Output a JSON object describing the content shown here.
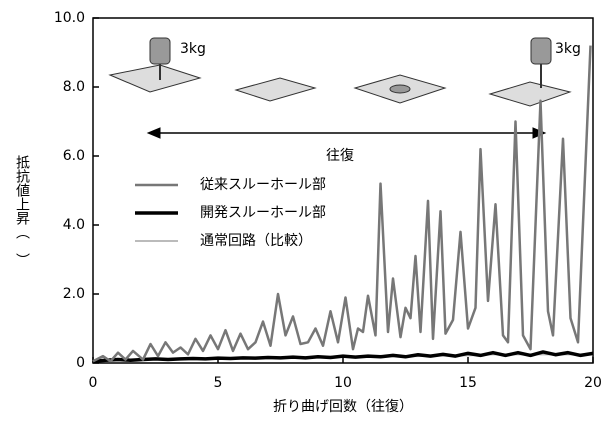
{
  "chart_data": {
    "type": "line",
    "y_label": "抵抗値上昇（　）",
    "x_label": "折り曲げ回数（往復）",
    "annotations": [
      "3kg",
      "3kg",
      "往復"
    ],
    "xlim": [
      0,
      20
    ],
    "xticks": [
      0,
      5,
      10,
      15,
      20
    ],
    "ylim": [
      0,
      10
    ],
    "yticks": [
      0,
      {
        "value": 2,
        "label": "2.0"
      },
      {
        "value": 4,
        "label": "4.0"
      },
      {
        "value": 6,
        "label": "6.0"
      },
      {
        "value": 8,
        "label": "8.0"
      },
      {
        "value": 10,
        "label": "10.0"
      }
    ],
    "legend": "upper left",
    "series": [
      {
        "name": "従来スルーホール部",
        "color": "#777777",
        "width": 2.5,
        "x": [
          0,
          0.4,
          0.7,
          1.0,
          1.3,
          1.6,
          2.0,
          2.3,
          2.6,
          2.9,
          3.2,
          3.5,
          3.8,
          4.1,
          4.4,
          4.7,
          5.0,
          5.3,
          5.6,
          5.9,
          6.2,
          6.5,
          6.8,
          7.1,
          7.4,
          7.7,
          8.0,
          8.3,
          8.6,
          8.9,
          9.2,
          9.5,
          9.8,
          10.1,
          10.4,
          10.6,
          10.8,
          11.0,
          11.3,
          11.5,
          11.8,
          12.0,
          12.3,
          12.5,
          12.7,
          12.9,
          13.1,
          13.4,
          13.6,
          13.9,
          14.1,
          14.4,
          14.7,
          15.0,
          15.3,
          15.5,
          15.8,
          16.1,
          16.4,
          16.6,
          16.9,
          17.2,
          17.5,
          17.9,
          18.2,
          18.4,
          18.8,
          19.1,
          19.4,
          19.9
        ],
        "values": [
          0.05,
          0.2,
          0.05,
          0.3,
          0.1,
          0.35,
          0.1,
          0.55,
          0.2,
          0.6,
          0.3,
          0.45,
          0.25,
          0.7,
          0.35,
          0.8,
          0.4,
          0.95,
          0.35,
          0.85,
          0.4,
          0.6,
          1.2,
          0.5,
          2.0,
          0.8,
          1.35,
          0.55,
          0.6,
          1.0,
          0.5,
          1.5,
          0.6,
          1.9,
          0.4,
          1.0,
          0.9,
          1.95,
          0.8,
          5.2,
          0.9,
          2.45,
          0.75,
          1.6,
          1.3,
          3.1,
          0.9,
          4.7,
          0.7,
          4.4,
          0.85,
          1.25,
          3.8,
          1.0,
          1.6,
          6.2,
          1.8,
          4.6,
          0.8,
          0.6,
          7.0,
          0.8,
          0.4,
          7.6,
          1.5,
          0.8,
          6.5,
          1.3,
          0.6,
          9.2
        ]
      },
      {
        "name": "開発スルーホール部",
        "color": "#000000",
        "width": 3.5,
        "x": [
          0,
          0.5,
          1,
          1.5,
          2,
          2.5,
          3,
          3.5,
          4,
          4.5,
          5,
          5.5,
          6,
          6.5,
          7,
          7.5,
          8,
          8.5,
          9,
          9.5,
          10,
          10.5,
          11,
          11.5,
          12,
          12.5,
          13,
          13.5,
          14,
          14.5,
          15,
          15.5,
          16,
          16.5,
          17,
          17.5,
          18,
          18.5,
          19,
          19.5,
          20
        ],
        "values": [
          0.05,
          0.08,
          0.1,
          0.08,
          0.1,
          0.12,
          0.1,
          0.12,
          0.13,
          0.12,
          0.14,
          0.13,
          0.15,
          0.14,
          0.16,
          0.15,
          0.17,
          0.15,
          0.18,
          0.16,
          0.2,
          0.17,
          0.2,
          0.18,
          0.22,
          0.18,
          0.24,
          0.2,
          0.25,
          0.2,
          0.28,
          0.22,
          0.3,
          0.22,
          0.3,
          0.22,
          0.32,
          0.24,
          0.3,
          0.22,
          0.28
        ]
      },
      {
        "name": "通常回路（比較）",
        "color": "#bbbbbb",
        "width": 2,
        "x": [
          0,
          1,
          2,
          3,
          4,
          5,
          6,
          7,
          8,
          9,
          10,
          11,
          12,
          13,
          14,
          15,
          16,
          17,
          18,
          19,
          20
        ],
        "values": [
          0.05,
          0.08,
          0.1,
          0.1,
          0.12,
          0.12,
          0.15,
          0.15,
          0.15,
          0.18,
          0.18,
          0.2,
          0.2,
          0.2,
          0.22,
          0.22,
          0.25,
          0.25,
          0.25,
          0.25,
          0.25
        ]
      }
    ]
  }
}
